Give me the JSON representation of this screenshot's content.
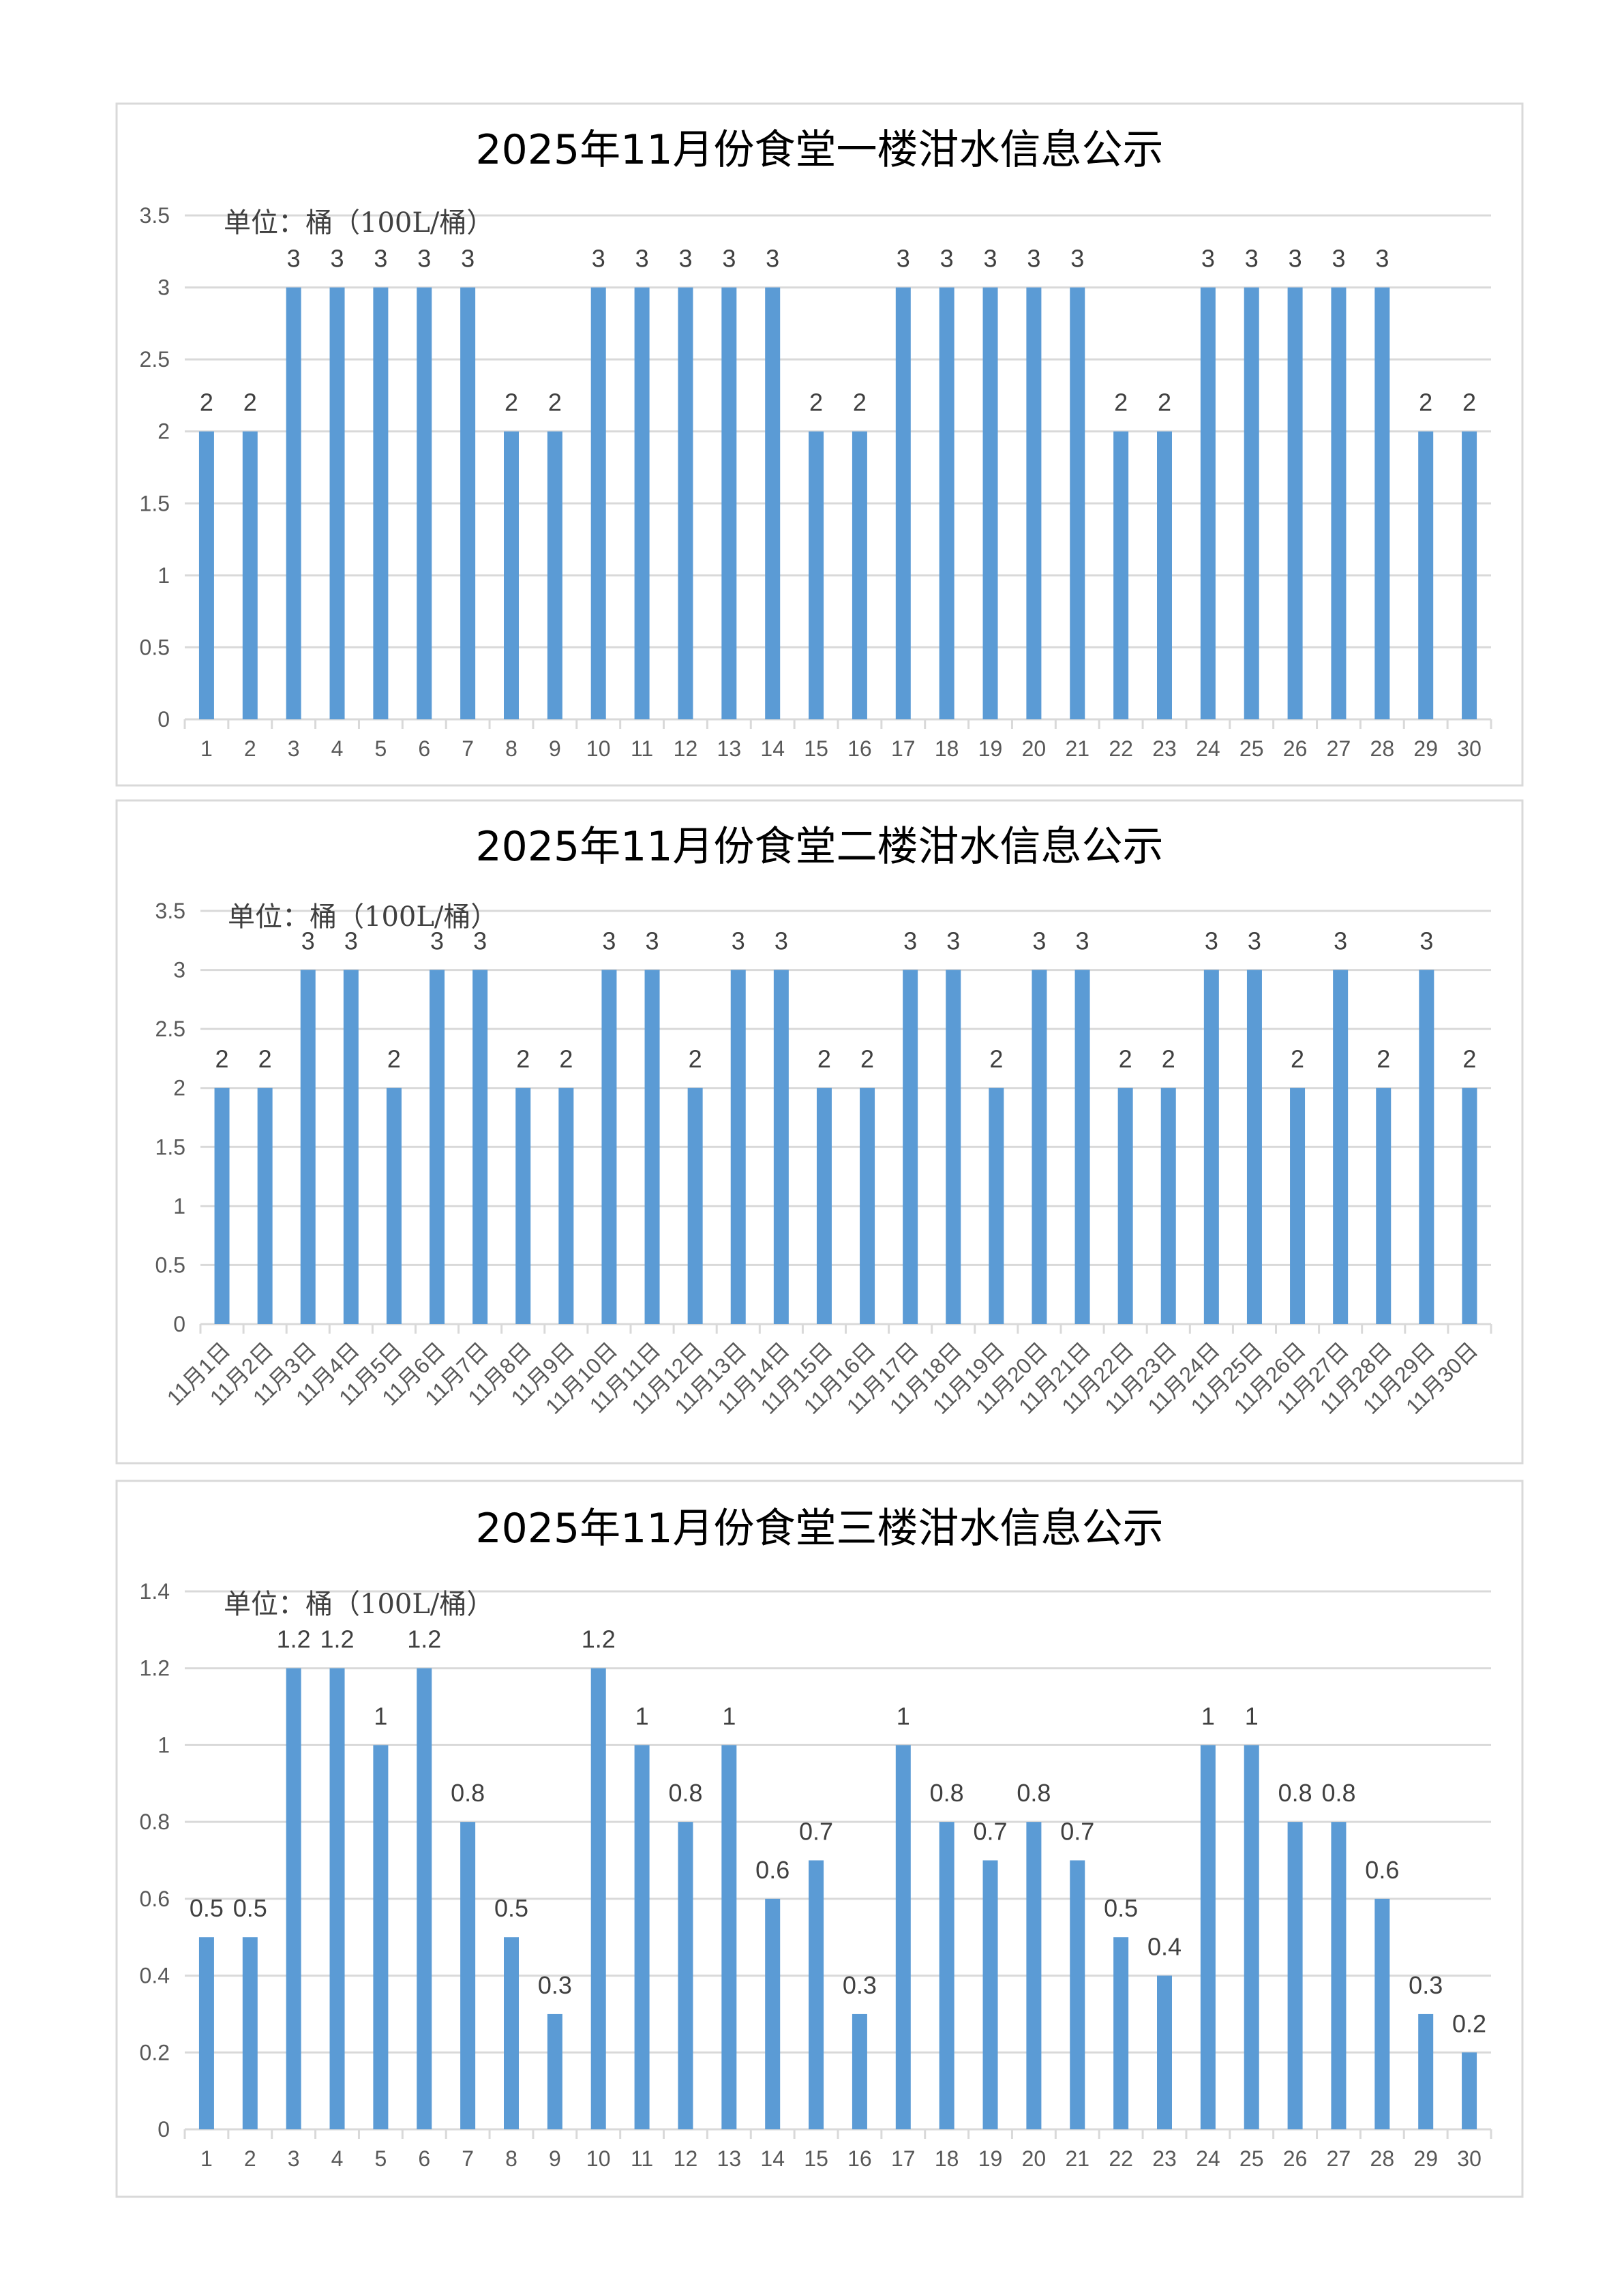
{
  "chart_data": [
    {
      "type": "bar",
      "title": "2025年11月份食堂一楼泔水信息公示",
      "annotation": "单位：桶（100L/桶）",
      "categories": [
        "1",
        "2",
        "3",
        "4",
        "5",
        "6",
        "7",
        "8",
        "9",
        "10",
        "11",
        "12",
        "13",
        "14",
        "15",
        "16",
        "17",
        "18",
        "19",
        "20",
        "21",
        "22",
        "23",
        "24",
        "25",
        "26",
        "27",
        "28",
        "29",
        "30"
      ],
      "values": [
        2,
        2,
        3,
        3,
        3,
        3,
        3,
        2,
        2,
        3,
        3,
        3,
        3,
        3,
        2,
        2,
        3,
        3,
        3,
        3,
        3,
        2,
        2,
        3,
        3,
        3,
        3,
        3,
        2,
        2
      ],
      "yticks": [
        "0",
        "0.5",
        "1",
        "1.5",
        "2",
        "2.5",
        "3",
        "3.5"
      ],
      "ylim": [
        0,
        3.5
      ],
      "xlabel": "",
      "ylabel": "",
      "grid": true,
      "color": "#5b9bd5"
    },
    {
      "type": "bar",
      "title": "2025年11月份食堂二楼泔水信息公示",
      "annotation": "单位：桶（100L/桶）",
      "categories": [
        "11月1日",
        "11月2日",
        "11月3日",
        "11月4日",
        "11月5日",
        "11月6日",
        "11月7日",
        "11月8日",
        "11月9日",
        "11月10日",
        "11月11日",
        "11月12日",
        "11月13日",
        "11月14日",
        "11月15日",
        "11月16日",
        "11月17日",
        "11月18日",
        "11月19日",
        "11月20日",
        "11月21日",
        "11月22日",
        "11月23日",
        "11月24日",
        "11月25日",
        "11月26日",
        "11月27日",
        "11月28日",
        "11月29日",
        "11月30日"
      ],
      "values": [
        2,
        2,
        3,
        3,
        2,
        3,
        3,
        2,
        2,
        3,
        3,
        2,
        3,
        3,
        2,
        2,
        3,
        3,
        2,
        3,
        3,
        2,
        2,
        3,
        3,
        2,
        3,
        2,
        3,
        2
      ],
      "yticks": [
        "0",
        "0.5",
        "1",
        "1.5",
        "2",
        "2.5",
        "3",
        "3.5"
      ],
      "ylim": [
        0,
        3.5
      ],
      "xlabel": "",
      "ylabel": "",
      "grid": true,
      "color": "#5b9bd5"
    },
    {
      "type": "bar",
      "title": "2025年11月份食堂三楼泔水信息公示",
      "annotation": "单位：桶（100L/桶）",
      "categories": [
        "1",
        "2",
        "3",
        "4",
        "5",
        "6",
        "7",
        "8",
        "9",
        "10",
        "11",
        "12",
        "13",
        "14",
        "15",
        "16",
        "17",
        "18",
        "19",
        "20",
        "21",
        "22",
        "23",
        "24",
        "25",
        "26",
        "27",
        "28",
        "29",
        "30"
      ],
      "values": [
        0.5,
        0.5,
        1.2,
        1.2,
        1,
        1.2,
        0.8,
        0.5,
        0.3,
        1.2,
        1,
        0.8,
        1,
        0.6,
        0.7,
        0.3,
        1,
        0.8,
        0.7,
        0.8,
        0.7,
        0.5,
        0.4,
        1,
        1,
        0.8,
        0.8,
        0.6,
        0.3,
        0.2
      ],
      "yticks": [
        "0",
        "0.2",
        "0.4",
        "0.6",
        "0.8",
        "1",
        "1.2",
        "1.4"
      ],
      "ylim": [
        0,
        1.4
      ],
      "xlabel": "",
      "ylabel": "",
      "grid": true,
      "color": "#5b9bd5"
    }
  ]
}
